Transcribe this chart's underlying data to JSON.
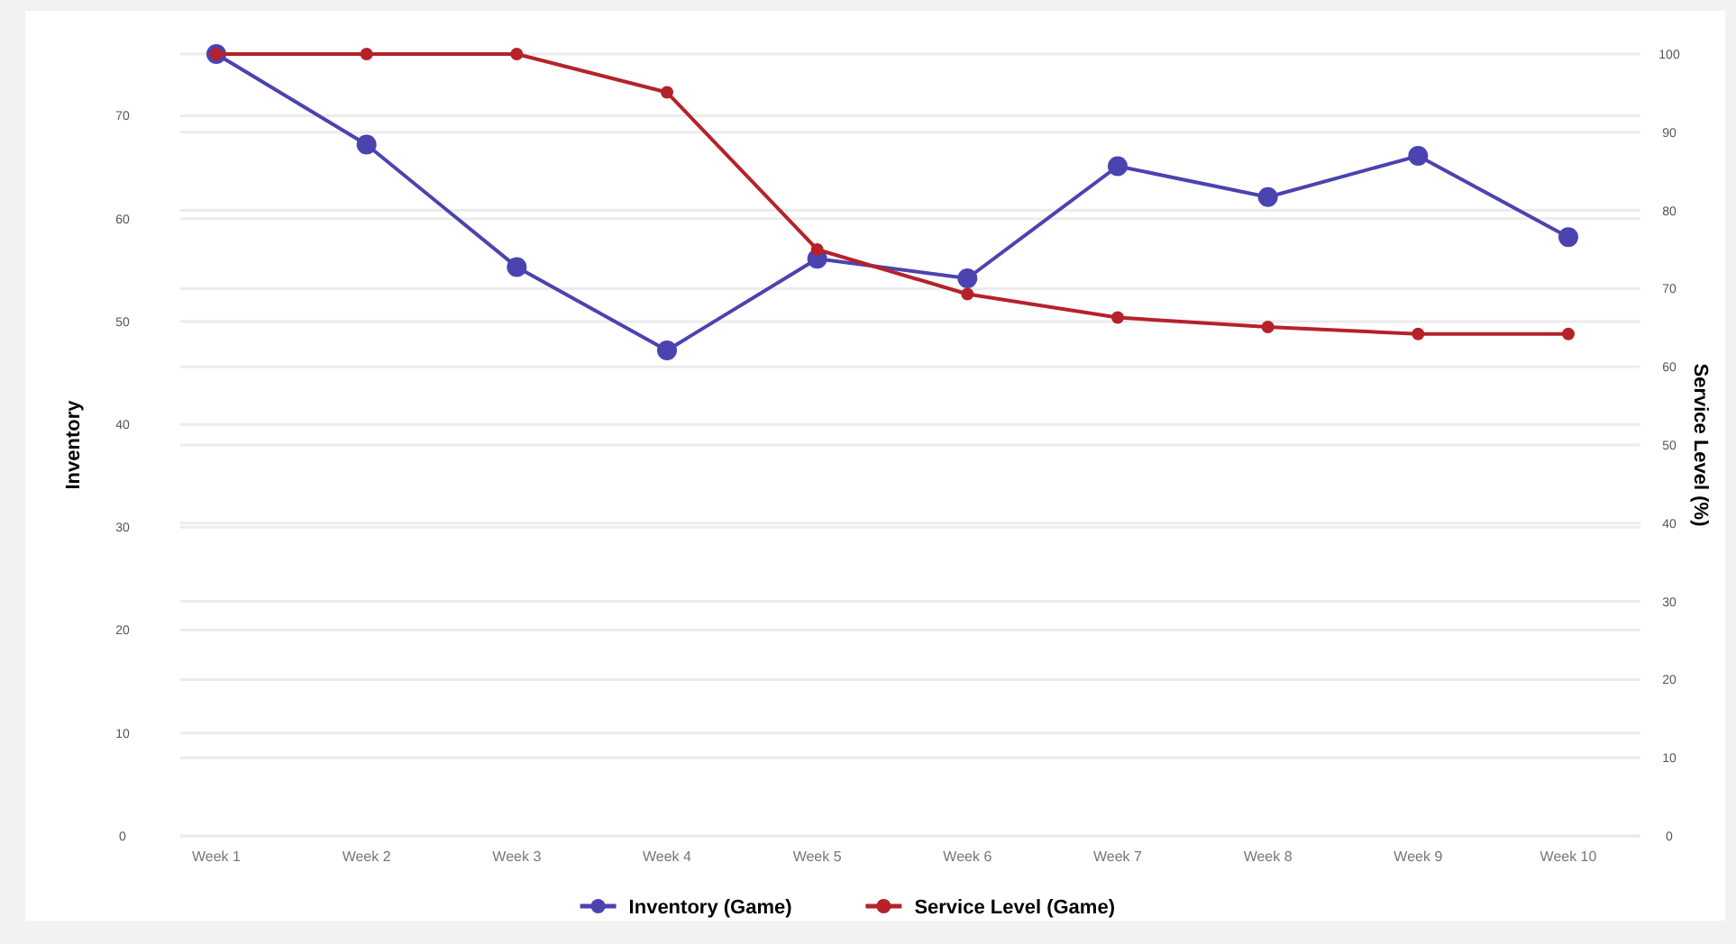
{
  "chart_data": {
    "type": "line",
    "ylabel": "Inventory",
    "y2label": "Service Level (%)",
    "categories": [
      "Week 1",
      "Week 2",
      "Week 3",
      "Week 4",
      "Week 5",
      "Week 6",
      "Week 7",
      "Week 8",
      "Week 9",
      "Week 10"
    ],
    "series": [
      {
        "name": "Inventory (Game)",
        "color": "#4b43b0",
        "values": [
          76,
          67.2,
          55.3,
          47.2,
          56.1,
          54.2,
          65.1,
          62.1,
          66.1,
          58.2
        ]
      },
      {
        "name": "Service Level (Game)",
        "color": "#b5222a",
        "axis": "y2",
        "values": [
          100,
          100,
          100,
          95.1,
          75,
          69.3,
          66.3,
          65.1,
          64.2,
          64.2
        ]
      }
    ],
    "ylim": [
      0,
      76
    ],
    "yticks": [
      0,
      10,
      20,
      30,
      40,
      50,
      60,
      70
    ],
    "y2lim": [
      0,
      100
    ],
    "y2ticks": [
      0,
      10,
      20,
      30,
      40,
      50,
      60,
      70,
      80,
      90,
      100
    ],
    "grid": true,
    "legend": "bottom",
    "marker": "circle",
    "line_style": "solid"
  }
}
